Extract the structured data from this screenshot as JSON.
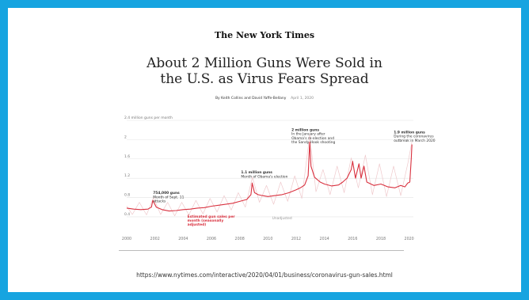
{
  "page": {
    "masthead": "The New York Times",
    "headline_line1": "About 2 Million Guns Were Sold in",
    "headline_line2": "the U.S. as Virus Fears Spread",
    "byline": "By Keith Collins and David Yaffe-Bellany",
    "byline_date": "April 1, 2020",
    "source_url": "https://www.nytimes.com/interactive/2020/04/01/business/coronavirus-gun-sales.html"
  },
  "colors": {
    "frame": "#16a4e0",
    "seasonally_adjusted_line": "#d9313f",
    "unadjusted_line": "#efc9cc",
    "axis_text": "#777777",
    "gridline": "#e4e4e4"
  },
  "chart_data": {
    "type": "line",
    "title": "",
    "ylabel": "2.4 million guns per month",
    "xlabel": "",
    "xlim": [
      2000,
      2020.3
    ],
    "ylim": [
      0.3,
      2.4
    ],
    "x_ticks": [
      "2000",
      "2002",
      "2004",
      "2006",
      "2008",
      "2010",
      "2012",
      "2014",
      "2016",
      "2018",
      "2020"
    ],
    "y_ticks": [
      {
        "value": 0.4,
        "label": "0.4"
      },
      {
        "value": 0.8,
        "label": "0.8"
      },
      {
        "value": 1.2,
        "label": "1.2"
      },
      {
        "value": 1.6,
        "label": "1.6"
      },
      {
        "value": 2.0,
        "label": "2"
      },
      {
        "value": 2.4,
        "label": "2.4 million guns per month"
      }
    ],
    "grid": true,
    "legend": "none",
    "series": [
      {
        "name": "Estimated gun sales per month (seasonally adjusted)",
        "x": [
          2000,
          2000.5,
          2001,
          2001.5,
          2001.75,
          2001.85,
          2002.1,
          2002.5,
          2003,
          2003.5,
          2004,
          2004.5,
          2005,
          2005.5,
          2006,
          2006.5,
          2007,
          2007.5,
          2008,
          2008.5,
          2008.8,
          2008.88,
          2009.05,
          2009.3,
          2009.6,
          2010,
          2010.5,
          2011,
          2011.5,
          2012,
          2012.3,
          2012.6,
          2012.85,
          2012.96,
          2013.05,
          2013.3,
          2013.7,
          2014,
          2014.5,
          2015,
          2015.3,
          2015.6,
          2015.9,
          2016,
          2016.2,
          2016.45,
          2016.6,
          2016.8,
          2017,
          2017.5,
          2018,
          2018.5,
          2019,
          2019.4,
          2019.7,
          2019.9,
          2020.05,
          2020.15,
          2020.2
        ],
        "values": [
          0.58,
          0.56,
          0.55,
          0.56,
          0.6,
          0.74,
          0.6,
          0.55,
          0.52,
          0.53,
          0.55,
          0.56,
          0.58,
          0.59,
          0.62,
          0.64,
          0.66,
          0.68,
          0.72,
          0.76,
          0.86,
          1.1,
          0.9,
          0.86,
          0.84,
          0.82,
          0.84,
          0.86,
          0.9,
          0.96,
          1.0,
          1.06,
          1.25,
          1.95,
          1.45,
          1.22,
          1.12,
          1.08,
          1.04,
          1.06,
          1.12,
          1.2,
          1.38,
          1.55,
          1.2,
          1.5,
          1.2,
          1.45,
          1.12,
          1.05,
          1.08,
          1.02,
          1.0,
          1.05,
          1.02,
          1.1,
          1.12,
          1.6,
          1.9
        ]
      },
      {
        "name": "Unadjusted",
        "x": [
          2000,
          2000.4,
          2000.9,
          2001.4,
          2001.9,
          2002.4,
          2002.9,
          2003.4,
          2003.9,
          2004.4,
          2004.9,
          2005.4,
          2005.9,
          2006.4,
          2006.9,
          2007.4,
          2007.9,
          2008.4,
          2008.9,
          2009.4,
          2009.9,
          2010.4,
          2010.9,
          2011.4,
          2011.9,
          2012.4,
          2012.96,
          2013.4,
          2013.9,
          2014.4,
          2014.9,
          2015.4,
          2015.9,
          2016.4,
          2016.9,
          2017.4,
          2017.9,
          2018.4,
          2018.9,
          2019.4,
          2019.9,
          2020.2
        ],
        "values": [
          0.62,
          0.45,
          0.7,
          0.44,
          0.8,
          0.45,
          0.7,
          0.42,
          0.7,
          0.44,
          0.74,
          0.46,
          0.78,
          0.5,
          0.84,
          0.54,
          0.9,
          0.6,
          1.22,
          0.7,
          1.05,
          0.66,
          1.12,
          0.72,
          1.25,
          0.78,
          2.1,
          0.92,
          1.38,
          0.86,
          1.45,
          0.9,
          1.62,
          1.0,
          1.68,
          0.86,
          1.5,
          0.82,
          1.45,
          0.84,
          1.5,
          1.96
        ]
      }
    ],
    "annotations": [
      {
        "lines": [
          "754,000 guns",
          "Month of Sept. 11",
          "attacks"
        ],
        "x": 2001.75,
        "y": 0.74,
        "bold_first": true,
        "color": "#333333"
      },
      {
        "lines": [
          "1.1 million guns",
          "Month of Obama's election"
        ],
        "x": 2008.88,
        "y": 1.1,
        "bold_first": true,
        "color": "#333333"
      },
      {
        "lines": [
          "2 million guns",
          "In the January after",
          "Obama's re-election and",
          "the Sandy Hook shooting"
        ],
        "x": 2012.96,
        "y": 1.95,
        "bold_first": true,
        "color": "#333333"
      },
      {
        "lines": [
          "1.9 million guns",
          "During the coronavirus",
          "outbreak in March 2020"
        ],
        "x": 2020.2,
        "y": 1.9,
        "bold_first": true,
        "color": "#333333"
      },
      {
        "lines": [
          "Estimated gun sales per",
          "month (seasonally",
          "adjusted)"
        ],
        "x": 2004.3,
        "y": 0.32,
        "bold_first": false,
        "color": "#d9313f"
      },
      {
        "lines": [
          "Unadjusted"
        ],
        "x": 2010.3,
        "y": 0.38,
        "bold_first": false,
        "color": "#999999"
      }
    ]
  }
}
